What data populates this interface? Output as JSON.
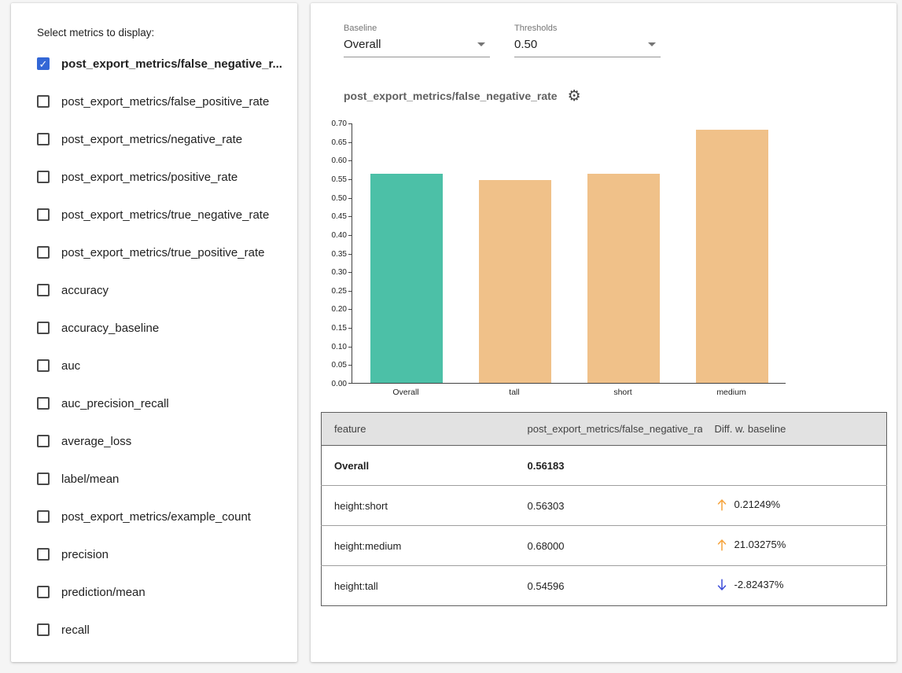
{
  "metrics_panel": {
    "title": "Select metrics to display:",
    "items": [
      {
        "label": "post_export_metrics/false_negative_r...",
        "checked": true
      },
      {
        "label": "post_export_metrics/false_positive_rate",
        "checked": false
      },
      {
        "label": "post_export_metrics/negative_rate",
        "checked": false
      },
      {
        "label": "post_export_metrics/positive_rate",
        "checked": false
      },
      {
        "label": "post_export_metrics/true_negative_rate",
        "checked": false
      },
      {
        "label": "post_export_metrics/true_positive_rate",
        "checked": false
      },
      {
        "label": "accuracy",
        "checked": false
      },
      {
        "label": "accuracy_baseline",
        "checked": false
      },
      {
        "label": "auc",
        "checked": false
      },
      {
        "label": "auc_precision_recall",
        "checked": false
      },
      {
        "label": "average_loss",
        "checked": false
      },
      {
        "label": "label/mean",
        "checked": false
      },
      {
        "label": "post_export_metrics/example_count",
        "checked": false
      },
      {
        "label": "precision",
        "checked": false
      },
      {
        "label": "prediction/mean",
        "checked": false
      },
      {
        "label": "recall",
        "checked": false
      }
    ]
  },
  "controls": {
    "baseline": {
      "label": "Baseline",
      "value": "Overall"
    },
    "thresholds": {
      "label": "Thresholds",
      "value": "0.50"
    }
  },
  "chart": {
    "title": "post_export_metrics/false_negative_rate"
  },
  "chart_data": {
    "type": "bar",
    "title": "post_export_metrics/false_negative_rate",
    "categories": [
      "Overall",
      "tall",
      "short",
      "medium"
    ],
    "values": [
      0.56183,
      0.54596,
      0.56303,
      0.68
    ],
    "bar_colors": [
      "#4cc0a7",
      "#f0c189",
      "#f0c189",
      "#f0c189"
    ],
    "xlabel": "",
    "ylabel": "",
    "ylim": [
      0,
      0.7
    ],
    "ytick_step": 0.05,
    "grid": false,
    "legend": "none"
  },
  "table": {
    "headers": [
      "feature",
      "post_export_metrics/false_negative_rat...",
      "Diff. w. baseline"
    ],
    "rows": [
      {
        "feature": "Overall",
        "value": "0.56183",
        "diff": "",
        "direction": "",
        "is_baseline": true
      },
      {
        "feature": "height:short",
        "value": "0.56303",
        "diff": "0.21249%",
        "direction": "up",
        "is_baseline": false
      },
      {
        "feature": "height:medium",
        "value": "0.68000",
        "diff": "21.03275%",
        "direction": "up",
        "is_baseline": false
      },
      {
        "feature": "height:tall",
        "value": "0.54596",
        "diff": "-2.82437%",
        "direction": "down",
        "is_baseline": false
      }
    ]
  },
  "icons": {
    "settings": "⚙",
    "check": "✓"
  },
  "colors": {
    "baseline_bar": "#4cc0a7",
    "slice_bar": "#f0c189",
    "checkbox_checked": "#3367d6",
    "up_arrow": "#f5a33c",
    "down_arrow": "#3b4bd8",
    "baseline_text": "#26a583"
  }
}
